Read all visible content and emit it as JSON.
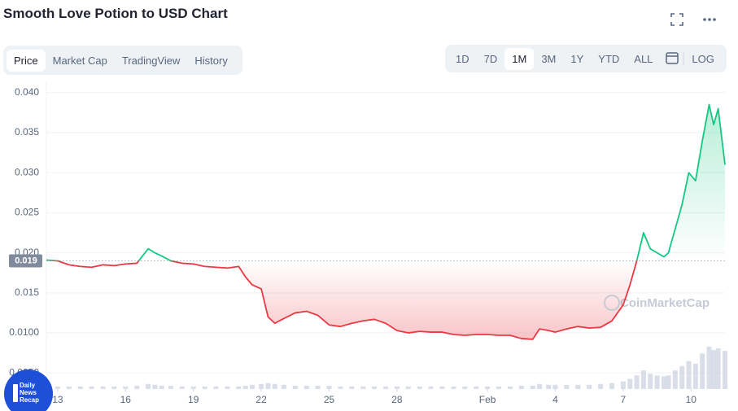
{
  "ui": {
    "tabs": [
      "Price",
      "Market Cap",
      "TradingView",
      "History"
    ],
    "ranges": [
      "1D",
      "7D",
      "1M",
      "3M",
      "1Y",
      "YTD",
      "ALL"
    ],
    "log": "LOG",
    "watermark": "CoinMarketCap",
    "badge": [
      "Daily",
      "News",
      "Recap"
    ]
  },
  "chart_data": {
    "type": "line",
    "title": "Smooth Love Potion to USD Chart",
    "x": [
      12.5,
      13,
      13.5,
      14,
      14.5,
      15,
      15.5,
      16,
      16.5,
      17,
      17.3,
      17.6,
      18,
      18.5,
      19,
      19.5,
      20,
      20.5,
      21,
      21.3,
      21.6,
      22,
      22.3,
      22.6,
      23,
      23.5,
      24,
      24.5,
      25,
      25.5,
      26,
      26.5,
      27,
      27.5,
      28,
      28.5,
      29,
      29.5,
      30,
      30.5,
      31,
      31.5,
      32,
      32.5,
      33,
      33.5,
      34,
      34.3,
      34.7,
      35,
      35.5,
      36,
      36.5,
      37,
      37.5,
      38,
      38.3,
      38.6,
      38.9,
      39.2,
      39.5,
      39.8,
      40,
      40.3,
      40.6,
      40.9,
      41.2,
      41.5,
      41.8,
      42,
      42.2,
      42.5
    ],
    "series": [
      {
        "name": "Price",
        "color": "#16c784",
        "color_below": "#ea3943",
        "values": [
          0.0191,
          0.019,
          0.0185,
          0.0183,
          0.0182,
          0.0185,
          0.0184,
          0.0186,
          0.0187,
          0.0205,
          0.02,
          0.0196,
          0.019,
          0.0187,
          0.0186,
          0.0183,
          0.0182,
          0.0181,
          0.0183,
          0.017,
          0.016,
          0.0155,
          0.012,
          0.0112,
          0.0118,
          0.0125,
          0.0127,
          0.0122,
          0.011,
          0.0108,
          0.0112,
          0.0115,
          0.0117,
          0.0112,
          0.0103,
          0.01,
          0.0102,
          0.0101,
          0.0101,
          0.0098,
          0.0097,
          0.0098,
          0.0098,
          0.0097,
          0.0097,
          0.0093,
          0.0092,
          0.0105,
          0.0103,
          0.0101,
          0.0105,
          0.0108,
          0.0106,
          0.0107,
          0.0115,
          0.0135,
          0.016,
          0.019,
          0.0225,
          0.0205,
          0.02,
          0.0195,
          0.02,
          0.023,
          0.026,
          0.03,
          0.029,
          0.034,
          0.0385,
          0.036,
          0.038,
          0.031
        ],
        "volume": [
          3,
          3,
          3,
          3,
          3,
          3,
          3,
          3,
          4,
          6,
          5,
          4,
          4,
          3,
          3,
          3,
          3,
          3,
          3,
          4,
          5,
          6,
          7,
          6,
          5,
          4,
          4,
          4,
          4,
          3,
          3,
          3,
          3,
          3,
          3,
          3,
          3,
          3,
          3,
          3,
          3,
          3,
          3,
          3,
          3,
          4,
          4,
          6,
          5,
          5,
          5,
          5,
          5,
          6,
          7,
          9,
          12,
          16,
          22,
          18,
          16,
          15,
          16,
          22,
          27,
          33,
          30,
          42,
          50,
          46,
          48,
          45
        ]
      }
    ],
    "baseline": 0.019,
    "xlim": [
      12.5,
      42.5
    ],
    "xticks": [
      {
        "value": 13,
        "label": "13"
      },
      16,
      19,
      22,
      25,
      28,
      {
        "value": 32,
        "label": "Feb"
      },
      {
        "value": 35,
        "label": "4"
      },
      {
        "value": 38,
        "label": "7"
      },
      {
        "value": 41,
        "label": "10"
      }
    ],
    "ylim": [
      0.0033,
      0.0414
    ],
    "yticks": [
      {
        "value": 0.04,
        "label": "0.040"
      },
      0.035,
      {
        "value": 0.03,
        "label": "0.030"
      },
      0.025,
      {
        "value": 0.02,
        "label": "0.020"
      },
      0.015,
      {
        "value": 0.01,
        "label": "0.0100"
      },
      {
        "value": 0.005,
        "label": "0.0050"
      }
    ],
    "grid": true
  }
}
